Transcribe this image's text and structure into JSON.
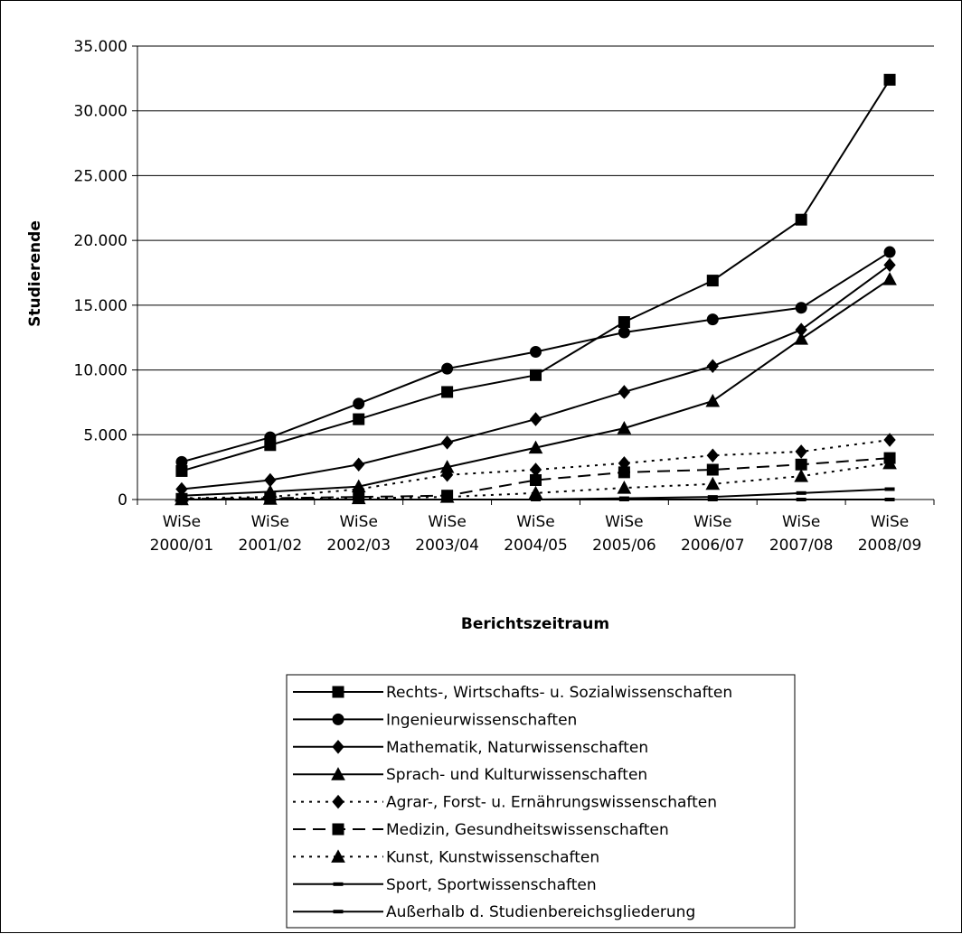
{
  "chart_data": {
    "type": "line",
    "xlabel": "Berichtszeitraum",
    "ylabel": "Studierende",
    "ylim": [
      0,
      35000
    ],
    "yticks": [
      0,
      5000,
      10000,
      15000,
      20000,
      25000,
      30000,
      35000
    ],
    "ytick_labels": [
      "0",
      "5.000",
      "10.000",
      "15.000",
      "20.000",
      "25.000",
      "30.000",
      "35.000"
    ],
    "categories": [
      [
        "WiSe",
        "2000/01"
      ],
      [
        "WiSe",
        "2001/02"
      ],
      [
        "WiSe",
        "2002/03"
      ],
      [
        "WiSe",
        "2003/04"
      ],
      [
        "WiSe",
        "2004/05"
      ],
      [
        "WiSe",
        "2005/06"
      ],
      [
        "WiSe",
        "2006/07"
      ],
      [
        "WiSe",
        "2007/08"
      ],
      [
        "WiSe",
        "2008/09"
      ]
    ],
    "grid": "horizontal",
    "legend_position": "bottom",
    "series": [
      {
        "name": "Rechts-, Wirtschafts- u. Sozialwissenschaften",
        "marker": "square",
        "dash": "solid",
        "color": "#000000",
        "values": [
          2200,
          4200,
          6200,
          8300,
          9600,
          13700,
          16900,
          21600,
          32400
        ]
      },
      {
        "name": "Ingenieurwissenschaften",
        "marker": "circle",
        "dash": "solid",
        "color": "#000000",
        "values": [
          2900,
          4800,
          7400,
          10100,
          11400,
          12900,
          13900,
          14800,
          19100
        ]
      },
      {
        "name": "Mathematik, Naturwissenschaften",
        "marker": "diamond",
        "dash": "solid",
        "color": "#000000",
        "values": [
          800,
          1500,
          2700,
          4400,
          6200,
          8300,
          10300,
          13100,
          18100
        ]
      },
      {
        "name": "Sprach- und Kulturwissenschaften",
        "marker": "triangle",
        "dash": "solid",
        "color": "#000000",
        "values": [
          300,
          600,
          1000,
          2500,
          4000,
          5500,
          7600,
          12400,
          17000
        ]
      },
      {
        "name": "Agrar-, Forst- u. Ernährungswissenschaften",
        "marker": "diamond",
        "dash": "dotted",
        "color": "#000000",
        "values": [
          100,
          200,
          800,
          1900,
          2300,
          2800,
          3400,
          3700,
          4600
        ]
      },
      {
        "name": "Medizin, Gesundheitswissenschaften",
        "marker": "square",
        "dash": "dashed",
        "color": "#000000",
        "values": [
          50,
          100,
          200,
          300,
          1500,
          2100,
          2300,
          2700,
          3200
        ]
      },
      {
        "name": "Kunst, Kunstwissenschaften",
        "marker": "triangle",
        "dash": "dotted",
        "color": "#000000",
        "values": [
          20,
          50,
          100,
          200,
          500,
          900,
          1200,
          1800,
          2800
        ]
      },
      {
        "name": "Sport, Sportwissenschaften",
        "marker": "dash",
        "dash": "solid",
        "color": "#000000",
        "values": [
          0,
          0,
          0,
          0,
          0,
          100,
          200,
          500,
          800
        ]
      },
      {
        "name": "Außerhalb d. Studienbereichsgliederung",
        "marker": "dash",
        "dash": "solid",
        "color": "#000000",
        "values": [
          0,
          0,
          0,
          0,
          0,
          0,
          0,
          0,
          0
        ]
      }
    ]
  }
}
